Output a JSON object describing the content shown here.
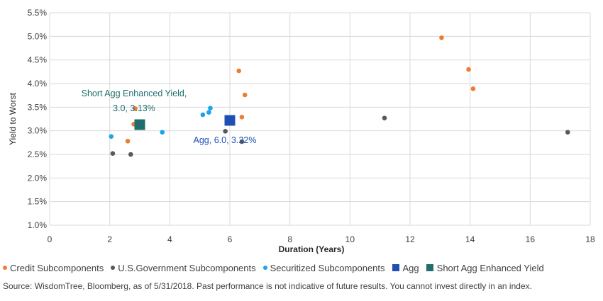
{
  "chart_data": {
    "type": "scatter",
    "title": "",
    "xlabel": "Duration (Years)",
    "ylabel": "Yield to Worst",
    "xlim": [
      0,
      18
    ],
    "ylim": [
      1.0,
      5.5
    ],
    "x_ticks": [
      0,
      2,
      4,
      6,
      8,
      10,
      12,
      14,
      16,
      18
    ],
    "y_ticks": [
      "1.0%",
      "1.5%",
      "2.0%",
      "2.5%",
      "3.0%",
      "3.5%",
      "4.0%",
      "4.5%",
      "5.0%",
      "5.5%"
    ],
    "y_tick_values": [
      1.0,
      1.5,
      2.0,
      2.5,
      3.0,
      3.5,
      4.0,
      4.5,
      5.0,
      5.5
    ],
    "grid": true,
    "legend_position": "bottom",
    "series": [
      {
        "name": "Credit Subcomponents",
        "marker": "circle",
        "color": "#ED7D31",
        "points": [
          {
            "x": 2.6,
            "y": 2.78
          },
          {
            "x": 2.8,
            "y": 3.14
          },
          {
            "x": 2.85,
            "y": 3.47
          },
          {
            "x": 6.3,
            "y": 4.27
          },
          {
            "x": 6.4,
            "y": 3.29
          },
          {
            "x": 6.5,
            "y": 3.76
          },
          {
            "x": 13.05,
            "y": 4.97
          },
          {
            "x": 13.95,
            "y": 4.3
          },
          {
            "x": 14.1,
            "y": 3.89
          }
        ]
      },
      {
        "name": "U.S.Government Subcomponents",
        "marker": "circle",
        "color": "#595959",
        "points": [
          {
            "x": 2.1,
            "y": 2.52
          },
          {
            "x": 2.7,
            "y": 2.5
          },
          {
            "x": 5.85,
            "y": 2.99
          },
          {
            "x": 6.4,
            "y": 2.77
          },
          {
            "x": 11.15,
            "y": 3.27
          },
          {
            "x": 17.25,
            "y": 2.97
          }
        ]
      },
      {
        "name": "Securitized Subcomponents",
        "marker": "circle",
        "color": "#1CA3EC",
        "points": [
          {
            "x": 2.05,
            "y": 2.88
          },
          {
            "x": 3.75,
            "y": 2.97
          },
          {
            "x": 5.1,
            "y": 3.34
          },
          {
            "x": 5.3,
            "y": 3.39
          },
          {
            "x": 5.35,
            "y": 3.48
          }
        ]
      },
      {
        "name": "Agg",
        "marker": "square",
        "color": "#1F4FB4",
        "points": [
          {
            "x": 6.0,
            "y": 3.22
          }
        ]
      },
      {
        "name": "Short Agg Enhanced Yield",
        "marker": "square",
        "color": "#1F6E6B",
        "points": [
          {
            "x": 3.0,
            "y": 3.13
          }
        ]
      }
    ],
    "annotations": [
      {
        "line1": "Short  Agg Enhanced Yield,",
        "line2": "3.0, 3.13%",
        "color": "#1F6E6B"
      },
      {
        "line1": "Agg, 6.0, 3.22%",
        "color": "#1F4FB4"
      }
    ]
  },
  "legend": [
    {
      "label": "Credit Subcomponents",
      "color": "#ED7D31",
      "shape": "circle"
    },
    {
      "label": "U.S.Government Subcomponents",
      "color": "#595959",
      "shape": "circle"
    },
    {
      "label": "Securitized Subcomponents",
      "color": "#1CA3EC",
      "shape": "circle"
    },
    {
      "label": "Agg",
      "color": "#1F4FB4",
      "shape": "square"
    },
    {
      "label": "Short Agg Enhanced Yield",
      "color": "#1F6E6B",
      "shape": "square"
    }
  ],
  "source": "Source: WisdomTree, Bloomberg, as of 5/31/2018. Past performance is not indicative of future results. You cannot invest directly in an index."
}
